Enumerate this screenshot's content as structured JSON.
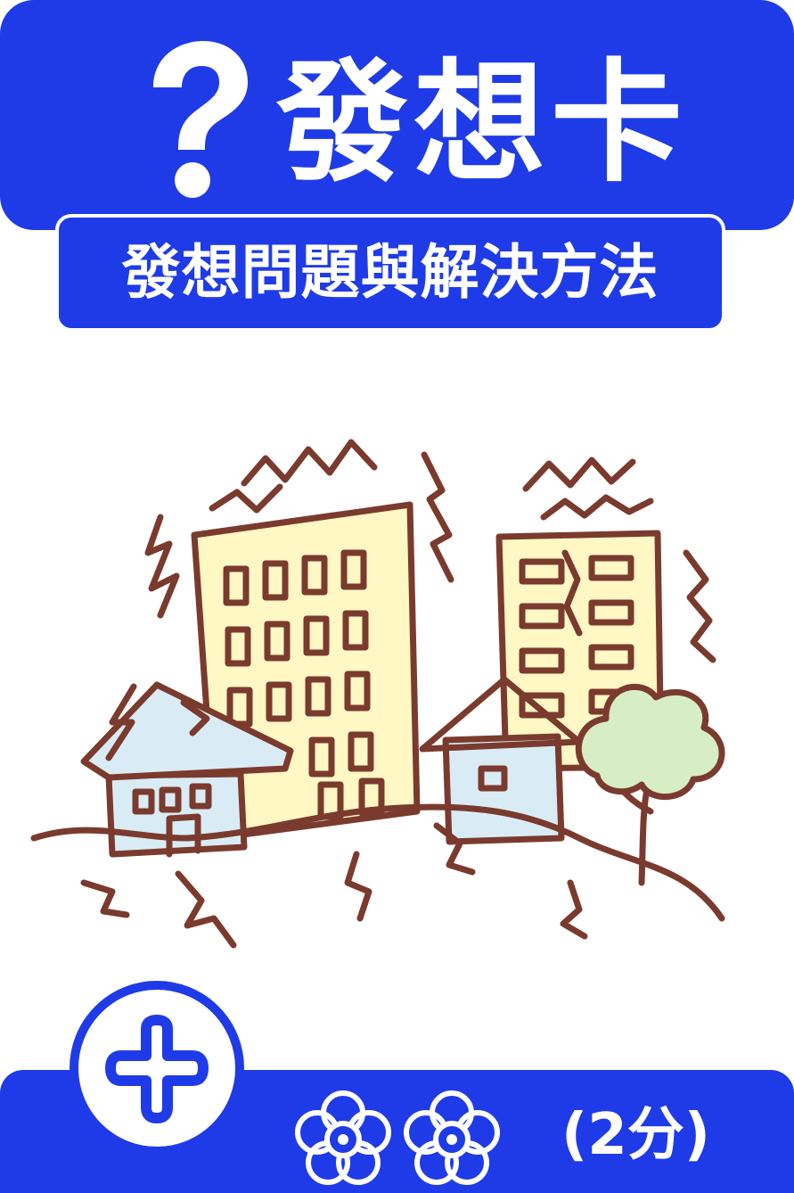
{
  "header": {
    "icon": "question-mark-icon",
    "title": "發想卡"
  },
  "subtitle": {
    "text": "發想問題與解決方法"
  },
  "illustration": {
    "icon": "earthquake-buildings-illustration"
  },
  "footer": {
    "badge_icon": "plus-icon",
    "flower_icon": "flower-icon",
    "points_label": "(2分)"
  },
  "colors": {
    "primary": "#1f3be8",
    "background": "#ffffff",
    "ink": "#7a3b2e",
    "building_fill": "#fff7c4",
    "house_fill": "#d9ecf6",
    "tree_fill": "#d7eec4"
  }
}
